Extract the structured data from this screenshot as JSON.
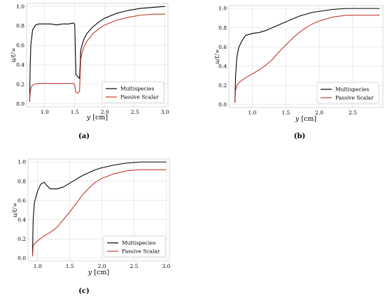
{
  "chart_data": [
    {
      "type": "line",
      "panel": "a",
      "caption": "(a)",
      "xlabel_var": "y",
      "xlabel_unit": "[cm]",
      "ylabel": "u/U∞",
      "xlim": [
        0.7,
        3.05
      ],
      "ylim": [
        -0.03,
        1.03
      ],
      "xticks": [
        1.0,
        1.5,
        2.0,
        2.5,
        3.0
      ],
      "yticks": [
        0.0,
        0.2,
        0.4,
        0.6,
        0.8,
        1.0
      ],
      "grid": true,
      "legend_position": "lower-right",
      "series": [
        {
          "name": "Multispecies",
          "color": "#000000",
          "x": [
            0.75,
            0.76,
            0.77,
            0.8,
            0.85,
            0.9,
            1.0,
            1.1,
            1.2,
            1.3,
            1.4,
            1.48,
            1.5,
            1.52,
            1.55,
            1.58,
            1.6,
            1.62,
            1.65,
            1.7,
            1.8,
            1.9,
            2.0,
            2.2,
            2.4,
            2.6,
            2.8,
            3.0
          ],
          "y": [
            0.02,
            0.4,
            0.6,
            0.76,
            0.81,
            0.82,
            0.82,
            0.82,
            0.81,
            0.82,
            0.82,
            0.83,
            0.81,
            0.3,
            0.28,
            0.26,
            0.55,
            0.6,
            0.66,
            0.72,
            0.79,
            0.84,
            0.88,
            0.93,
            0.96,
            0.98,
            0.99,
            1.0
          ]
        },
        {
          "name": "Passive Scalar",
          "color": "#c0392b",
          "x": [
            0.75,
            0.76,
            0.78,
            0.82,
            0.9,
            1.0,
            1.1,
            1.2,
            1.3,
            1.4,
            1.48,
            1.5,
            1.52,
            1.55,
            1.58,
            1.6,
            1.62,
            1.65,
            1.7,
            1.8,
            1.9,
            2.0,
            2.2,
            2.4,
            2.6,
            2.8,
            3.0
          ],
          "y": [
            0.02,
            0.12,
            0.18,
            0.2,
            0.21,
            0.21,
            0.21,
            0.21,
            0.21,
            0.21,
            0.21,
            0.19,
            0.12,
            0.11,
            0.13,
            0.46,
            0.52,
            0.58,
            0.64,
            0.72,
            0.77,
            0.81,
            0.86,
            0.89,
            0.91,
            0.92,
            0.92
          ]
        }
      ]
    },
    {
      "type": "line",
      "panel": "b",
      "caption": "(b)",
      "xlabel_var": "y",
      "xlabel_unit": "[cm]",
      "ylabel": "u/U∞",
      "xlim": [
        0.65,
        2.95
      ],
      "ylim": [
        -0.03,
        1.03
      ],
      "xticks": [
        1.0,
        1.5,
        2.0,
        2.5
      ],
      "yticks": [
        0.0,
        0.2,
        0.4,
        0.6,
        0.8,
        1.0
      ],
      "grid": true,
      "legend_position": "lower-right",
      "series": [
        {
          "name": "Multispecies",
          "color": "#000000",
          "x": [
            0.74,
            0.75,
            0.77,
            0.8,
            0.85,
            0.9,
            0.95,
            1.0,
            1.1,
            1.2,
            1.3,
            1.4,
            1.5,
            1.6,
            1.7,
            1.8,
            1.9,
            2.0,
            2.2,
            2.4,
            2.6,
            2.8,
            2.9
          ],
          "y": [
            0.02,
            0.3,
            0.5,
            0.6,
            0.67,
            0.72,
            0.73,
            0.74,
            0.75,
            0.77,
            0.8,
            0.83,
            0.86,
            0.89,
            0.92,
            0.94,
            0.96,
            0.97,
            0.99,
            1.0,
            1.0,
            1.0,
            1.0
          ]
        },
        {
          "name": "Passive Scalar",
          "color": "#c0392b",
          "x": [
            0.74,
            0.75,
            0.77,
            0.8,
            0.9,
            1.0,
            1.1,
            1.2,
            1.3,
            1.4,
            1.5,
            1.6,
            1.7,
            1.8,
            1.9,
            2.0,
            2.2,
            2.4,
            2.6,
            2.8,
            2.9
          ],
          "y": [
            0.02,
            0.15,
            0.2,
            0.23,
            0.28,
            0.32,
            0.36,
            0.41,
            0.47,
            0.55,
            0.62,
            0.69,
            0.75,
            0.8,
            0.84,
            0.87,
            0.91,
            0.93,
            0.93,
            0.93,
            0.93
          ]
        }
      ]
    },
    {
      "type": "line",
      "panel": "c",
      "caption": "(c)",
      "xlabel_var": "y",
      "xlabel_unit": "[cm]",
      "ylabel": "u/U∞",
      "xlim": [
        0.85,
        3.05
      ],
      "ylim": [
        -0.03,
        1.03
      ],
      "xticks": [
        1.0,
        1.5,
        2.0,
        2.5,
        3.0
      ],
      "yticks": [
        0.0,
        0.2,
        0.4,
        0.6,
        0.8,
        1.0
      ],
      "grid": true,
      "legend_position": "lower-right",
      "series": [
        {
          "name": "Multispecies",
          "color": "#000000",
          "x": [
            0.92,
            0.93,
            0.95,
            1.0,
            1.05,
            1.1,
            1.15,
            1.2,
            1.3,
            1.4,
            1.5,
            1.6,
            1.7,
            1.8,
            1.9,
            2.0,
            2.2,
            2.4,
            2.6,
            2.8,
            3.0
          ],
          "y": [
            0.02,
            0.4,
            0.58,
            0.7,
            0.77,
            0.79,
            0.75,
            0.72,
            0.72,
            0.74,
            0.78,
            0.82,
            0.86,
            0.89,
            0.92,
            0.94,
            0.97,
            0.99,
            1.0,
            1.0,
            1.0
          ]
        },
        {
          "name": "Passive Scalar",
          "color": "#c0392b",
          "x": [
            0.92,
            0.93,
            0.95,
            1.0,
            1.1,
            1.2,
            1.3,
            1.4,
            1.5,
            1.6,
            1.7,
            1.8,
            1.9,
            2.0,
            2.2,
            2.4,
            2.6,
            2.8,
            3.0
          ],
          "y": [
            0.02,
            0.12,
            0.15,
            0.18,
            0.23,
            0.27,
            0.32,
            0.4,
            0.48,
            0.57,
            0.66,
            0.73,
            0.79,
            0.83,
            0.88,
            0.91,
            0.92,
            0.92,
            0.92
          ]
        }
      ]
    }
  ]
}
